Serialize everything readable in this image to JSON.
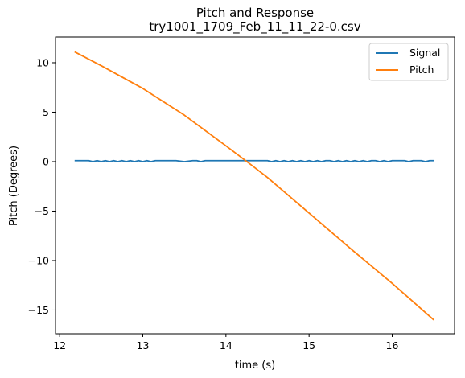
{
  "chart_data": {
    "type": "line",
    "title": "Pitch and Response",
    "subtitle": "try1001_1709_Feb_11_11_22-0.csv",
    "xlabel": "time (s)",
    "ylabel": "Pitch (Degrees)",
    "xlim": [
      11.95,
      16.75
    ],
    "ylim": [
      -17.4,
      12.6
    ],
    "xticks": [
      12,
      13,
      14,
      15,
      16
    ],
    "yticks": [
      10,
      5,
      0,
      -5,
      -10,
      -15
    ],
    "xtick_labels": [
      "12",
      "13",
      "14",
      "15",
      "16"
    ],
    "ytick_labels": [
      "10",
      "5",
      "0",
      "−5",
      "−10",
      "−15"
    ],
    "grid": false,
    "legend_position": "top-right",
    "series": [
      {
        "name": "Signal",
        "color": "#1f77b4",
        "x": [
          12.18,
          12.25,
          12.3,
          12.35,
          12.4,
          12.45,
          12.5,
          12.55,
          12.6,
          12.65,
          12.7,
          12.75,
          12.8,
          12.85,
          12.9,
          12.95,
          13.0,
          13.05,
          13.1,
          13.15,
          13.2,
          13.3,
          13.4,
          13.5,
          13.6,
          13.65,
          13.7,
          13.75,
          13.8,
          13.9,
          14.0,
          14.1,
          14.2,
          14.3,
          14.4,
          14.5,
          14.55,
          14.6,
          14.65,
          14.7,
          14.75,
          14.8,
          14.85,
          14.9,
          14.95,
          15.0,
          15.05,
          15.1,
          15.15,
          15.2,
          15.25,
          15.3,
          15.35,
          15.4,
          15.45,
          15.5,
          15.55,
          15.6,
          15.65,
          15.7,
          15.75,
          15.8,
          15.85,
          15.9,
          15.95,
          16.0,
          16.05,
          16.1,
          16.15,
          16.2,
          16.25,
          16.3,
          16.35,
          16.4,
          16.45,
          16.5
        ],
        "y": [
          0.1,
          0.1,
          0.1,
          0.1,
          0.0,
          0.1,
          0.0,
          0.1,
          0.0,
          0.1,
          0.0,
          0.1,
          0.0,
          0.1,
          0.0,
          0.1,
          0.0,
          0.1,
          0.0,
          0.1,
          0.1,
          0.1,
          0.1,
          0.0,
          0.1,
          0.1,
          0.0,
          0.1,
          0.1,
          0.1,
          0.1,
          0.1,
          0.1,
          0.1,
          0.1,
          0.1,
          0.0,
          0.1,
          0.0,
          0.1,
          0.0,
          0.1,
          0.0,
          0.1,
          0.0,
          0.1,
          0.0,
          0.1,
          0.0,
          0.1,
          0.1,
          0.0,
          0.1,
          0.0,
          0.1,
          0.0,
          0.1,
          0.0,
          0.1,
          0.0,
          0.1,
          0.1,
          0.0,
          0.1,
          0.0,
          0.1,
          0.1,
          0.1,
          0.1,
          0.0,
          0.1,
          0.1,
          0.1,
          0.0,
          0.1,
          0.1
        ]
      },
      {
        "name": "Pitch",
        "color": "#ff7f0e",
        "x": [
          12.18,
          12.5,
          13.0,
          13.5,
          14.0,
          14.3,
          14.5,
          15.0,
          15.5,
          16.0,
          16.5
        ],
        "y": [
          11.1,
          9.7,
          7.4,
          4.7,
          1.6,
          -0.3,
          -1.6,
          -5.2,
          -8.8,
          -12.3,
          -16.0
        ]
      }
    ]
  }
}
